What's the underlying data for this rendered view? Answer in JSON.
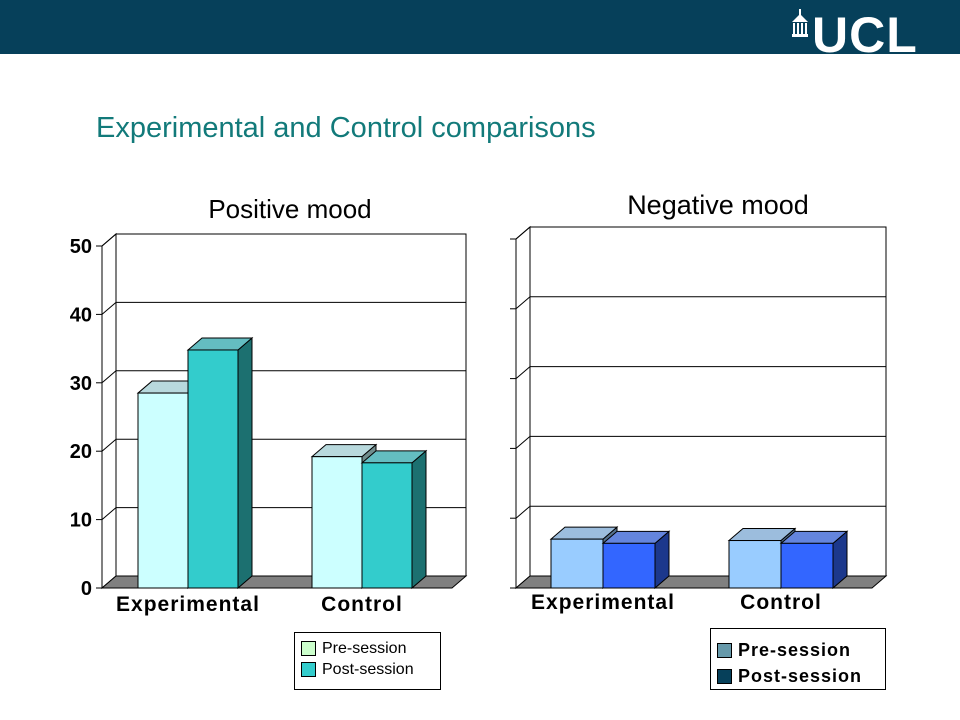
{
  "header": {
    "logo_text": "UCL",
    "bar_color": "#06405a"
  },
  "slide": {
    "title": "Experimental and Control comparisons"
  },
  "chart_data": [
    {
      "type": "bar",
      "style": "3d",
      "title": "Positive mood",
      "categories": [
        "Experimental",
        "Control"
      ],
      "series": [
        {
          "name": "Pre-session",
          "values": [
            28.5,
            19.2
          ],
          "color": "#ccffff"
        },
        {
          "name": "Post-session",
          "values": [
            34.8,
            18.3
          ],
          "color": "#33cccc"
        }
      ],
      "ylim": [
        0,
        50
      ],
      "yticks": [
        "0",
        "10",
        "20",
        "30",
        "40",
        "50"
      ],
      "grid": true,
      "legend_position": "bottom-right"
    },
    {
      "type": "bar",
      "style": "3d",
      "title": "Negative mood",
      "categories": [
        "Experimental",
        "Control"
      ],
      "series": [
        {
          "name": "Pre-session",
          "values": [
            7.0,
            6.8
          ],
          "color": "#99ccff"
        },
        {
          "name": "Post-session",
          "values": [
            6.4,
            6.4
          ],
          "color": "#3366ff"
        }
      ],
      "ylim": [
        0,
        50
      ],
      "yticks": [],
      "grid": true,
      "legend_position": "bottom-right"
    }
  ],
  "legends": {
    "left": [
      {
        "label": "Pre-session",
        "color": "#ccffcc"
      },
      {
        "label": "Post-session",
        "color": "#33cccc"
      }
    ],
    "right": [
      {
        "label": "Pre-session",
        "color": "#6699aa"
      },
      {
        "label": "Post-session",
        "color": "#06405a"
      }
    ]
  }
}
